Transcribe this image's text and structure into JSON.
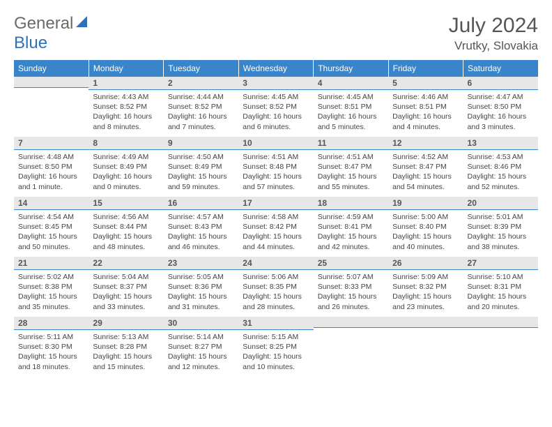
{
  "brand": {
    "general": "General",
    "blue": "Blue"
  },
  "header": {
    "title": "July 2024",
    "location": "Vrutky, Slovakia"
  },
  "colors": {
    "header_bg": "#3a85c9",
    "daynum_bg": "#e7e7e7",
    "rule": "#3a85c9"
  },
  "dow": [
    "Sunday",
    "Monday",
    "Tuesday",
    "Wednesday",
    "Thursday",
    "Friday",
    "Saturday"
  ],
  "weeks": [
    [
      {
        "n": "",
        "sr": "",
        "ss": "",
        "dl": ""
      },
      {
        "n": "1",
        "sr": "Sunrise: 4:43 AM",
        "ss": "Sunset: 8:52 PM",
        "dl": "Daylight: 16 hours and 8 minutes."
      },
      {
        "n": "2",
        "sr": "Sunrise: 4:44 AM",
        "ss": "Sunset: 8:52 PM",
        "dl": "Daylight: 16 hours and 7 minutes."
      },
      {
        "n": "3",
        "sr": "Sunrise: 4:45 AM",
        "ss": "Sunset: 8:52 PM",
        "dl": "Daylight: 16 hours and 6 minutes."
      },
      {
        "n": "4",
        "sr": "Sunrise: 4:45 AM",
        "ss": "Sunset: 8:51 PM",
        "dl": "Daylight: 16 hours and 5 minutes."
      },
      {
        "n": "5",
        "sr": "Sunrise: 4:46 AM",
        "ss": "Sunset: 8:51 PM",
        "dl": "Daylight: 16 hours and 4 minutes."
      },
      {
        "n": "6",
        "sr": "Sunrise: 4:47 AM",
        "ss": "Sunset: 8:50 PM",
        "dl": "Daylight: 16 hours and 3 minutes."
      }
    ],
    [
      {
        "n": "7",
        "sr": "Sunrise: 4:48 AM",
        "ss": "Sunset: 8:50 PM",
        "dl": "Daylight: 16 hours and 1 minute."
      },
      {
        "n": "8",
        "sr": "Sunrise: 4:49 AM",
        "ss": "Sunset: 8:49 PM",
        "dl": "Daylight: 16 hours and 0 minutes."
      },
      {
        "n": "9",
        "sr": "Sunrise: 4:50 AM",
        "ss": "Sunset: 8:49 PM",
        "dl": "Daylight: 15 hours and 59 minutes."
      },
      {
        "n": "10",
        "sr": "Sunrise: 4:51 AM",
        "ss": "Sunset: 8:48 PM",
        "dl": "Daylight: 15 hours and 57 minutes."
      },
      {
        "n": "11",
        "sr": "Sunrise: 4:51 AM",
        "ss": "Sunset: 8:47 PM",
        "dl": "Daylight: 15 hours and 55 minutes."
      },
      {
        "n": "12",
        "sr": "Sunrise: 4:52 AM",
        "ss": "Sunset: 8:47 PM",
        "dl": "Daylight: 15 hours and 54 minutes."
      },
      {
        "n": "13",
        "sr": "Sunrise: 4:53 AM",
        "ss": "Sunset: 8:46 PM",
        "dl": "Daylight: 15 hours and 52 minutes."
      }
    ],
    [
      {
        "n": "14",
        "sr": "Sunrise: 4:54 AM",
        "ss": "Sunset: 8:45 PM",
        "dl": "Daylight: 15 hours and 50 minutes."
      },
      {
        "n": "15",
        "sr": "Sunrise: 4:56 AM",
        "ss": "Sunset: 8:44 PM",
        "dl": "Daylight: 15 hours and 48 minutes."
      },
      {
        "n": "16",
        "sr": "Sunrise: 4:57 AM",
        "ss": "Sunset: 8:43 PM",
        "dl": "Daylight: 15 hours and 46 minutes."
      },
      {
        "n": "17",
        "sr": "Sunrise: 4:58 AM",
        "ss": "Sunset: 8:42 PM",
        "dl": "Daylight: 15 hours and 44 minutes."
      },
      {
        "n": "18",
        "sr": "Sunrise: 4:59 AM",
        "ss": "Sunset: 8:41 PM",
        "dl": "Daylight: 15 hours and 42 minutes."
      },
      {
        "n": "19",
        "sr": "Sunrise: 5:00 AM",
        "ss": "Sunset: 8:40 PM",
        "dl": "Daylight: 15 hours and 40 minutes."
      },
      {
        "n": "20",
        "sr": "Sunrise: 5:01 AM",
        "ss": "Sunset: 8:39 PM",
        "dl": "Daylight: 15 hours and 38 minutes."
      }
    ],
    [
      {
        "n": "21",
        "sr": "Sunrise: 5:02 AM",
        "ss": "Sunset: 8:38 PM",
        "dl": "Daylight: 15 hours and 35 minutes."
      },
      {
        "n": "22",
        "sr": "Sunrise: 5:04 AM",
        "ss": "Sunset: 8:37 PM",
        "dl": "Daylight: 15 hours and 33 minutes."
      },
      {
        "n": "23",
        "sr": "Sunrise: 5:05 AM",
        "ss": "Sunset: 8:36 PM",
        "dl": "Daylight: 15 hours and 31 minutes."
      },
      {
        "n": "24",
        "sr": "Sunrise: 5:06 AM",
        "ss": "Sunset: 8:35 PM",
        "dl": "Daylight: 15 hours and 28 minutes."
      },
      {
        "n": "25",
        "sr": "Sunrise: 5:07 AM",
        "ss": "Sunset: 8:33 PM",
        "dl": "Daylight: 15 hours and 26 minutes."
      },
      {
        "n": "26",
        "sr": "Sunrise: 5:09 AM",
        "ss": "Sunset: 8:32 PM",
        "dl": "Daylight: 15 hours and 23 minutes."
      },
      {
        "n": "27",
        "sr": "Sunrise: 5:10 AM",
        "ss": "Sunset: 8:31 PM",
        "dl": "Daylight: 15 hours and 20 minutes."
      }
    ],
    [
      {
        "n": "28",
        "sr": "Sunrise: 5:11 AM",
        "ss": "Sunset: 8:30 PM",
        "dl": "Daylight: 15 hours and 18 minutes."
      },
      {
        "n": "29",
        "sr": "Sunrise: 5:13 AM",
        "ss": "Sunset: 8:28 PM",
        "dl": "Daylight: 15 hours and 15 minutes."
      },
      {
        "n": "30",
        "sr": "Sunrise: 5:14 AM",
        "ss": "Sunset: 8:27 PM",
        "dl": "Daylight: 15 hours and 12 minutes."
      },
      {
        "n": "31",
        "sr": "Sunrise: 5:15 AM",
        "ss": "Sunset: 8:25 PM",
        "dl": "Daylight: 15 hours and 10 minutes."
      },
      {
        "n": "",
        "sr": "",
        "ss": "",
        "dl": ""
      },
      {
        "n": "",
        "sr": "",
        "ss": "",
        "dl": ""
      },
      {
        "n": "",
        "sr": "",
        "ss": "",
        "dl": ""
      }
    ]
  ]
}
